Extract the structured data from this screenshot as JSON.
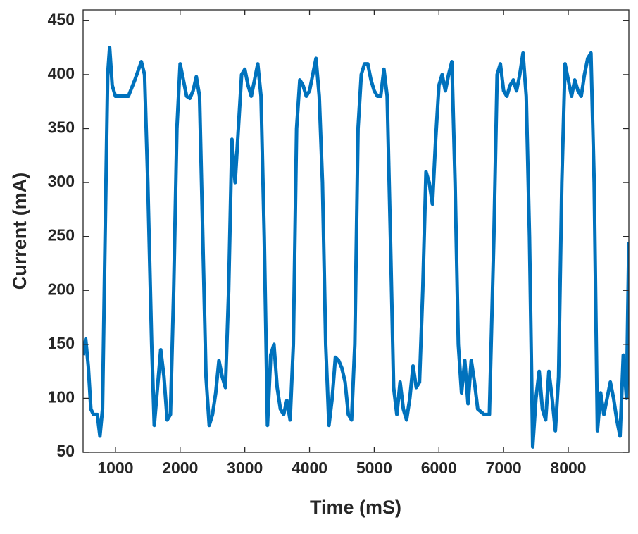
{
  "chart_data": {
    "type": "line",
    "x_label": "Time (mS)",
    "y_label": "Current (mA)",
    "xlim": [
      500,
      8936
    ],
    "ylim": [
      50,
      460
    ],
    "xticks": [
      1000,
      2000,
      3000,
      4000,
      5000,
      6000,
      7000,
      8000
    ],
    "yticks": [
      50,
      100,
      150,
      200,
      250,
      300,
      350,
      400,
      450
    ],
    "series": [
      {
        "color": "#0072bd",
        "x": [
          500,
          540,
          580,
          620,
          660,
          720,
          760,
          800,
          840,
          880,
          910,
          950,
          1000,
          1100,
          1200,
          1300,
          1400,
          1450,
          1500,
          1560,
          1600,
          1650,
          1700,
          1750,
          1800,
          1850,
          1900,
          1950,
          2000,
          2050,
          2100,
          2150,
          2200,
          2250,
          2300,
          2350,
          2400,
          2450,
          2500,
          2550,
          2600,
          2650,
          2700,
          2750,
          2800,
          2850,
          2900,
          2950,
          3000,
          3050,
          3100,
          3150,
          3200,
          3250,
          3300,
          3350,
          3400,
          3450,
          3500,
          3550,
          3600,
          3650,
          3700,
          3750,
          3800,
          3850,
          3900,
          3950,
          4000,
          4050,
          4100,
          4150,
          4200,
          4250,
          4300,
          4350,
          4400,
          4450,
          4500,
          4550,
          4600,
          4650,
          4700,
          4750,
          4800,
          4850,
          4900,
          4950,
          5000,
          5050,
          5100,
          5150,
          5200,
          5250,
          5300,
          5350,
          5400,
          5450,
          5500,
          5550,
          5600,
          5650,
          5700,
          5750,
          5800,
          5850,
          5900,
          5950,
          6000,
          6050,
          6100,
          6150,
          6200,
          6250,
          6300,
          6350,
          6400,
          6450,
          6500,
          6550,
          6600,
          6700,
          6780,
          6850,
          6900,
          6950,
          7000,
          7050,
          7100,
          7150,
          7200,
          7250,
          7300,
          7350,
          7400,
          7450,
          7500,
          7550,
          7600,
          7650,
          7700,
          7750,
          7800,
          7850,
          7900,
          7950,
          8000,
          8050,
          8100,
          8150,
          8200,
          8250,
          8300,
          8350,
          8400,
          8450,
          8500,
          8550,
          8600,
          8650,
          8700,
          8750,
          8800,
          8850,
          8900,
          8936
        ],
        "values": [
          140,
          155,
          130,
          90,
          85,
          85,
          65,
          90,
          250,
          400,
          425,
          390,
          380,
          380,
          380,
          395,
          412,
          400,
          300,
          150,
          75,
          110,
          145,
          120,
          80,
          85,
          200,
          350,
          410,
          395,
          380,
          378,
          385,
          398,
          380,
          250,
          120,
          75,
          85,
          105,
          135,
          120,
          110,
          200,
          340,
          300,
          350,
          400,
          405,
          390,
          380,
          395,
          410,
          380,
          250,
          75,
          140,
          150,
          110,
          90,
          85,
          98,
          80,
          150,
          350,
          395,
          390,
          380,
          385,
          400,
          415,
          380,
          300,
          150,
          75,
          100,
          138,
          135,
          128,
          115,
          85,
          80,
          150,
          350,
          400,
          410,
          410,
          395,
          385,
          380,
          380,
          405,
          380,
          250,
          110,
          85,
          115,
          90,
          80,
          100,
          130,
          110,
          115,
          200,
          310,
          300,
          280,
          340,
          390,
          400,
          385,
          400,
          412,
          300,
          150,
          105,
          135,
          95,
          135,
          115,
          90,
          85,
          85,
          250,
          400,
          410,
          385,
          380,
          390,
          395,
          385,
          400,
          420,
          380,
          250,
          55,
          100,
          125,
          90,
          80,
          125,
          100,
          70,
          120,
          300,
          410,
          395,
          380,
          395,
          385,
          380,
          400,
          415,
          420,
          300,
          70,
          105,
          85,
          100,
          115,
          100,
          80,
          65,
          140,
          100,
          245
        ]
      }
    ]
  }
}
